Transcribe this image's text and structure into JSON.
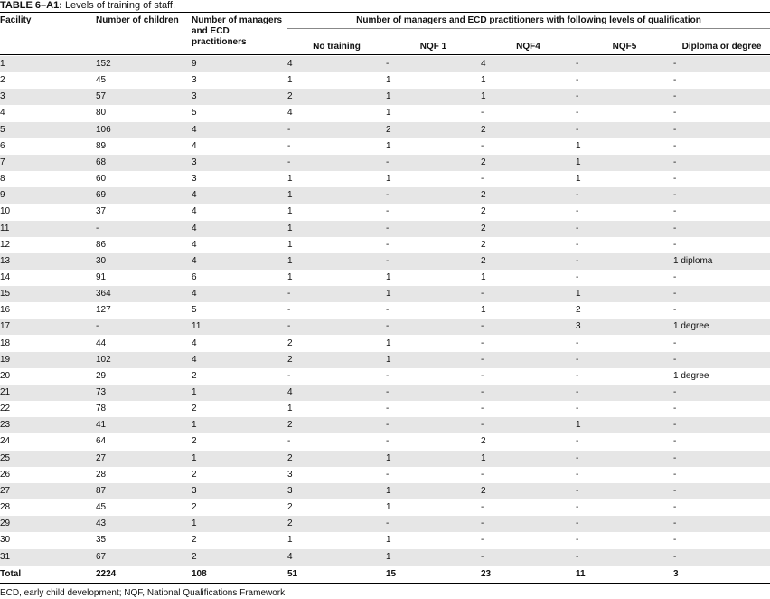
{
  "title": {
    "label": "TABLE 6–A1:",
    "text": "Levels of training of staff."
  },
  "table": {
    "header_top": [
      "Facility",
      "Number of children",
      "Number of managers and ECD practitioners"
    ],
    "header_group": "Number of managers and ECD practitioners with following levels of qualification",
    "header_sub": [
      "No training",
      "NQF 1",
      "NQF4",
      "NQF5",
      "Diploma or degree"
    ],
    "rows": [
      [
        1,
        152,
        9,
        4,
        "-",
        4,
        "-",
        "-"
      ],
      [
        2,
        45,
        3,
        1,
        1,
        1,
        "-",
        "-"
      ],
      [
        3,
        57,
        3,
        2,
        1,
        1,
        "-",
        "-"
      ],
      [
        4,
        80,
        5,
        4,
        1,
        "-",
        "-",
        "-"
      ],
      [
        5,
        106,
        4,
        "-",
        2,
        2,
        "-",
        "-"
      ],
      [
        6,
        89,
        4,
        "-",
        1,
        "-",
        1,
        "-"
      ],
      [
        7,
        68,
        3,
        "-",
        "-",
        2,
        1,
        "-"
      ],
      [
        8,
        60,
        3,
        1,
        1,
        "-",
        1,
        "-"
      ],
      [
        9,
        69,
        4,
        1,
        "-",
        2,
        "-",
        "-"
      ],
      [
        10,
        37,
        4,
        1,
        "-",
        2,
        "-",
        "-"
      ],
      [
        11,
        "-",
        4,
        1,
        "-",
        2,
        "-",
        "-"
      ],
      [
        12,
        86,
        4,
        1,
        "-",
        2,
        "-",
        "-"
      ],
      [
        13,
        30,
        4,
        1,
        "-",
        2,
        "-",
        "1 diploma"
      ],
      [
        14,
        91,
        6,
        1,
        1,
        1,
        "-",
        "-"
      ],
      [
        15,
        364,
        4,
        "-",
        1,
        "-",
        1,
        "-"
      ],
      [
        16,
        127,
        5,
        "-",
        "-",
        1,
        2,
        "-"
      ],
      [
        17,
        "-",
        11,
        "-",
        "-",
        "-",
        3,
        "1 degree"
      ],
      [
        18,
        44,
        4,
        2,
        1,
        "-",
        "-",
        "-"
      ],
      [
        19,
        102,
        4,
        2,
        1,
        "-",
        "-",
        "-"
      ],
      [
        20,
        29,
        2,
        "-",
        "-",
        "-",
        "-",
        "1 degree"
      ],
      [
        21,
        73,
        1,
        4,
        "-",
        "-",
        "-",
        "-"
      ],
      [
        22,
        78,
        2,
        1,
        "-",
        "-",
        "-",
        "-"
      ],
      [
        23,
        41,
        1,
        2,
        "-",
        "-",
        1,
        "-"
      ],
      [
        24,
        64,
        2,
        "-",
        "-",
        2,
        "-",
        "-"
      ],
      [
        25,
        27,
        1,
        2,
        1,
        1,
        "-",
        "-"
      ],
      [
        26,
        28,
        2,
        3,
        "-",
        "-",
        "-",
        "-"
      ],
      [
        27,
        87,
        3,
        3,
        1,
        2,
        "-",
        "-"
      ],
      [
        28,
        45,
        2,
        2,
        1,
        "-",
        "-",
        "-"
      ],
      [
        29,
        43,
        1,
        2,
        "-",
        "-",
        "-",
        "-"
      ],
      [
        30,
        35,
        2,
        1,
        1,
        "-",
        "-",
        "-"
      ],
      [
        31,
        67,
        2,
        4,
        1,
        "-",
        "-",
        "-"
      ]
    ],
    "total": [
      "Total",
      2224,
      108,
      51,
      15,
      23,
      11,
      3
    ]
  },
  "footnote": "ECD, early child development; NQF, National Qualifications Framework."
}
